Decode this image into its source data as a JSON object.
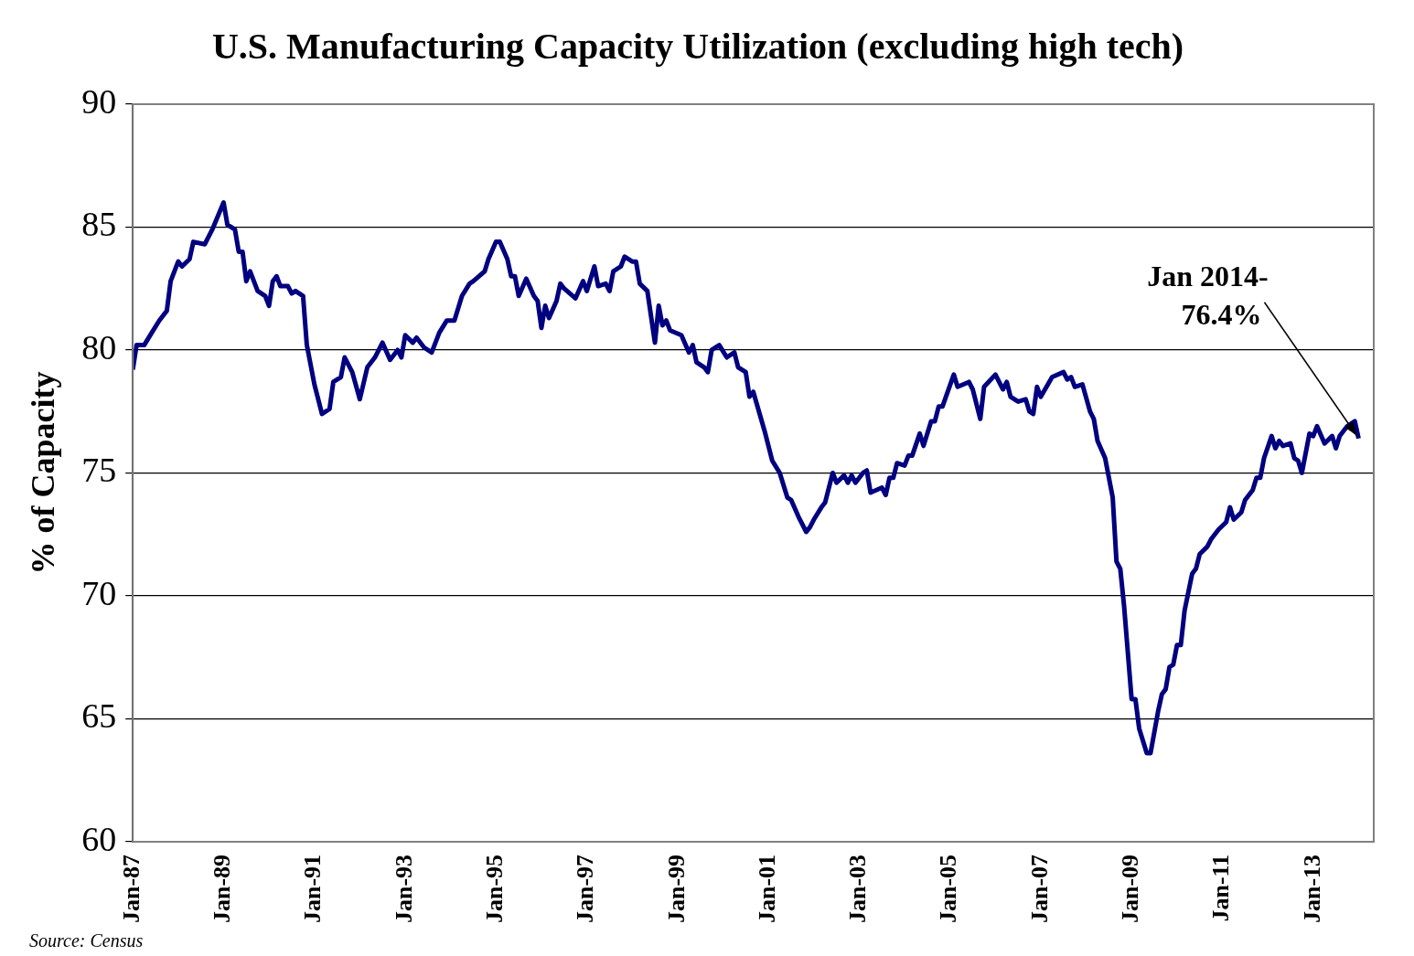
{
  "chart_data": {
    "type": "line",
    "title": "U.S. Manufacturing Capacity Utilization (excluding high tech)",
    "ylabel": "% of Capacity",
    "xlim": [
      "1987-01",
      "2014-05"
    ],
    "xticks": [
      {
        "value": "1987-01",
        "label": "Jan-87"
      },
      {
        "value": "1989-01",
        "label": "Jan-89"
      },
      {
        "value": "1991-01",
        "label": "Jan-91"
      },
      {
        "value": "1993-01",
        "label": "Jan-93"
      },
      {
        "value": "1995-01",
        "label": "Jan-95"
      },
      {
        "value": "1997-01",
        "label": "Jan-97"
      },
      {
        "value": "1999-01",
        "label": "Jan-99"
      },
      {
        "value": "2001-01",
        "label": "Jan-01"
      },
      {
        "value": "2003-01",
        "label": "Jan-03"
      },
      {
        "value": "2005-01",
        "label": "Jan-05"
      },
      {
        "value": "2007-01",
        "label": "Jan-07"
      },
      {
        "value": "2009-01",
        "label": "Jan-09"
      },
      {
        "value": "2011-01",
        "label": "Jan-11"
      },
      {
        "value": "2013-01",
        "label": "Jan-13"
      }
    ],
    "ylim": [
      60,
      90
    ],
    "yticks": [
      60,
      65,
      70,
      75,
      80,
      85,
      90
    ],
    "grid": "y",
    "marker": "none",
    "line_style": "solid",
    "x": [
      "1987-01",
      "1987-02",
      "1987-04",
      "1987-06",
      "1987-08",
      "1987-10",
      "1987-11",
      "1988-01",
      "1988-02",
      "1988-04",
      "1988-05",
      "1988-08",
      "1988-10",
      "1989-01",
      "1989-02",
      "1989-04",
      "1989-05",
      "1989-06",
      "1989-07",
      "1989-08",
      "1989-10",
      "1989-12",
      "1990-01",
      "1990-02",
      "1990-03",
      "1990-04",
      "1990-06",
      "1990-07",
      "1990-08",
      "1990-10",
      "1990-11",
      "1991-01",
      "1991-03",
      "1991-05",
      "1991-06",
      "1991-08",
      "1991-09",
      "1991-11",
      "1992-01",
      "1992-03",
      "1992-05",
      "1992-07",
      "1992-09",
      "1992-11",
      "1992-12",
      "1993-01",
      "1993-03",
      "1993-04",
      "1993-06",
      "1993-08",
      "1993-10",
      "1993-12",
      "1994-02",
      "1994-04",
      "1994-06",
      "1994-07",
      "1994-10",
      "1994-11",
      "1995-01",
      "1995-02",
      "1995-04",
      "1995-05",
      "1995-06",
      "1995-07",
      "1995-09",
      "1995-11",
      "1995-12",
      "1996-01",
      "1996-02",
      "1996-03",
      "1996-05",
      "1996-06",
      "1996-07",
      "1996-10",
      "1996-12",
      "1997-01",
      "1997-03",
      "1997-04",
      "1997-06",
      "1997-07",
      "1997-08",
      "1997-10",
      "1997-11",
      "1998-01",
      "1998-02",
      "1998-03",
      "1998-05",
      "1998-07",
      "1998-08",
      "1998-09",
      "1998-10",
      "1998-11",
      "1999-02",
      "1999-04",
      "1999-05",
      "1999-06",
      "1999-08",
      "1999-09",
      "1999-10",
      "1999-12",
      "2000-02",
      "2000-04",
      "2000-05",
      "2000-07",
      "2000-08",
      "2000-09",
      "2000-12",
      "2001-02",
      "2001-04",
      "2001-06",
      "2001-07",
      "2001-09",
      "2001-11",
      "2001-12",
      "2002-01",
      "2002-03",
      "2002-04",
      "2002-06",
      "2002-07",
      "2002-09",
      "2002-10",
      "2002-11",
      "2002-12",
      "2003-02",
      "2003-03",
      "2003-04",
      "2003-07",
      "2003-08",
      "2003-09",
      "2003-10",
      "2003-11",
      "2004-01",
      "2004-02",
      "2004-03",
      "2004-05",
      "2004-06",
      "2004-08",
      "2004-09",
      "2004-10",
      "2004-11",
      "2005-02",
      "2005-03",
      "2005-06",
      "2005-07",
      "2005-09",
      "2005-10",
      "2006-01",
      "2006-03",
      "2006-04",
      "2006-05",
      "2006-07",
      "2006-09",
      "2006-10",
      "2006-11",
      "2006-12",
      "2007-01",
      "2007-04",
      "2007-07",
      "2007-08",
      "2007-09",
      "2007-10",
      "2007-12",
      "2008-02",
      "2008-03",
      "2008-04",
      "2008-06",
      "2008-08",
      "2008-09",
      "2008-10",
      "2008-11",
      "2009-01",
      "2009-02",
      "2009-03",
      "2009-05",
      "2009-06",
      "2009-08",
      "2009-09",
      "2009-10",
      "2009-11",
      "2009-12",
      "2010-01",
      "2010-02",
      "2010-03",
      "2010-05",
      "2010-06",
      "2010-07",
      "2010-09",
      "2010-10",
      "2010-12",
      "2011-02",
      "2011-03",
      "2011-04",
      "2011-06",
      "2011-07",
      "2011-09",
      "2011-10",
      "2011-11",
      "2011-12",
      "2012-02",
      "2012-03",
      "2012-04",
      "2012-05",
      "2012-07",
      "2012-08",
      "2012-09",
      "2012-10",
      "2012-12",
      "2013-01",
      "2013-02",
      "2013-04",
      "2013-06",
      "2013-07",
      "2013-08",
      "2013-10",
      "2013-12",
      "2014-01"
    ],
    "series": [
      {
        "color": "#000080",
        "values": [
          79.2,
          80.2,
          80.2,
          80.7,
          81.2,
          81.6,
          82.8,
          83.6,
          83.4,
          83.7,
          84.4,
          84.3,
          84.9,
          86.0,
          85.1,
          84.9,
          84.0,
          84.0,
          82.8,
          83.2,
          82.4,
          82.2,
          81.8,
          82.8,
          83.0,
          82.6,
          82.6,
          82.3,
          82.4,
          82.2,
          80.2,
          78.6,
          77.4,
          77.6,
          78.7,
          78.9,
          79.7,
          79.1,
          78.0,
          79.3,
          79.7,
          80.3,
          79.6,
          80.0,
          79.7,
          80.6,
          80.3,
          80.5,
          80.1,
          79.9,
          80.7,
          81.2,
          81.2,
          82.2,
          82.7,
          82.8,
          83.2,
          83.7,
          84.4,
          84.4,
          83.7,
          83.0,
          83.0,
          82.2,
          82.9,
          82.2,
          82.0,
          80.9,
          81.8,
          81.3,
          82.0,
          82.7,
          82.5,
          82.1,
          82.8,
          82.4,
          83.4,
          82.6,
          82.7,
          82.4,
          83.2,
          83.4,
          83.8,
          83.6,
          83.6,
          82.7,
          82.4,
          80.3,
          81.8,
          81.0,
          81.2,
          80.8,
          80.6,
          79.9,
          80.2,
          79.5,
          79.3,
          79.1,
          80.0,
          80.2,
          79.7,
          79.9,
          79.3,
          79.1,
          78.1,
          78.3,
          76.7,
          75.5,
          75.0,
          74.0,
          73.9,
          73.2,
          72.6,
          72.8,
          73.1,
          73.6,
          73.8,
          75.0,
          74.6,
          74.9,
          74.6,
          74.9,
          74.6,
          75.0,
          75.1,
          74.2,
          74.4,
          74.1,
          74.8,
          74.8,
          75.4,
          75.3,
          75.7,
          75.7,
          76.6,
          76.1,
          77.1,
          77.1,
          77.7,
          77.7,
          79.0,
          78.5,
          78.7,
          78.4,
          77.2,
          78.5,
          79.0,
          78.4,
          78.7,
          78.1,
          77.9,
          78.0,
          77.5,
          77.4,
          78.5,
          78.1,
          78.9,
          79.1,
          78.8,
          78.9,
          78.5,
          78.6,
          77.5,
          77.2,
          76.3,
          75.6,
          74.0,
          71.4,
          71.1,
          69.6,
          65.8,
          65.8,
          64.6,
          63.6,
          63.6,
          65.3,
          66.0,
          66.2,
          67.1,
          67.2,
          68.0,
          68.0,
          69.4,
          70.9,
          71.1,
          71.7,
          72.0,
          72.3,
          72.7,
          73.0,
          73.6,
          73.1,
          73.4,
          73.9,
          74.3,
          74.8,
          74.8,
          75.6,
          76.5,
          76.0,
          76.3,
          76.1,
          76.2,
          75.6,
          75.5,
          75.0,
          76.6,
          76.5,
          76.9,
          76.2,
          76.5,
          76.0,
          76.5,
          76.9,
          77.1,
          76.4
        ]
      }
    ],
    "annotations": [
      {
        "text": "Jan 2014-\n76.4%",
        "x": "2014-01",
        "y": 76.4
      },
      "Source: Census"
    ]
  }
}
